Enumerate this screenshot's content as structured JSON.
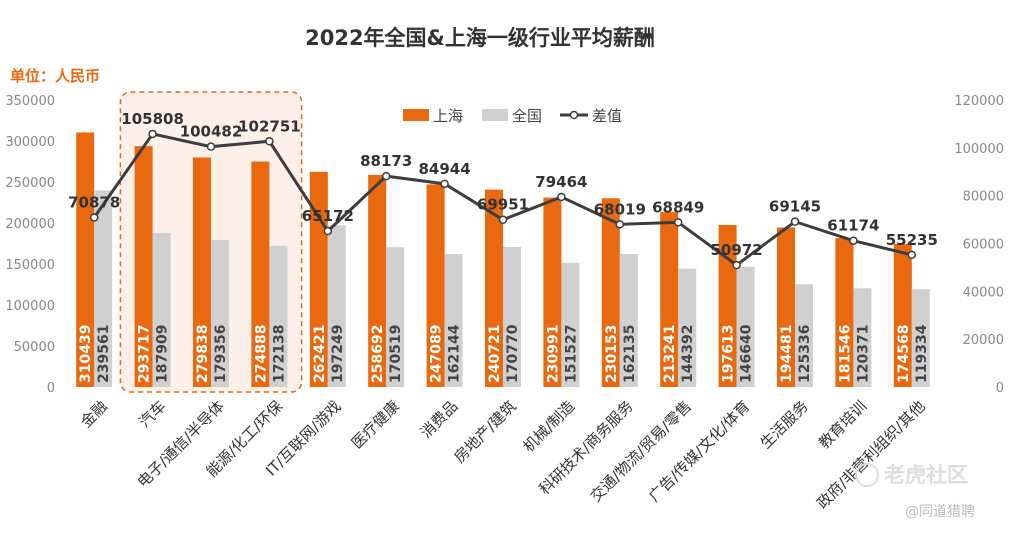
{
  "chart_data": {
    "type": "bar",
    "title": "2022年全国&上海一级行业平均薪酬",
    "unit_label": "单位：人民币",
    "legend": {
      "shanghai": "上海",
      "national": "全国",
      "diff": "差值"
    },
    "categories": [
      "金融",
      "汽车",
      "电子/通信/半导体",
      "能源/化工/环保",
      "IT/互联网/游戏",
      "医疗健康",
      "消费品",
      "房地产/建筑",
      "机械/制造",
      "科研技术/商务服务",
      "交通/物流/贸易/零售",
      "广告/传媒/文化/体育",
      "生活服务",
      "教育培训",
      "政府/非营利组织/其他"
    ],
    "series": [
      {
        "name": "上海",
        "values": [
          310439,
          293717,
          279838,
          274888,
          262421,
          258692,
          247089,
          240721,
          230991,
          230153,
          213241,
          197613,
          194481,
          181546,
          174568
        ],
        "value_labels": [
          "310439",
          "293717",
          "279838",
          "274888",
          "262421",
          "258692",
          "247089",
          "240721",
          "230991",
          "230153",
          "213241",
          "197613",
          "194481",
          "181546",
          "174568"
        ]
      },
      {
        "name": "全国",
        "values": [
          239561,
          187909,
          179356,
          172138,
          197249,
          170519,
          162144,
          170770,
          151527,
          162135,
          144392,
          146640,
          125336,
          120371,
          119334
        ],
        "value_labels": [
          "239561",
          "187909",
          "179356",
          "172138",
          "197249",
          "170519",
          "162144",
          "170770",
          "151527",
          "162135",
          "144392",
          "146640",
          "125336",
          "120371",
          "119334"
        ]
      },
      {
        "name": "差值",
        "axis": "right",
        "values": [
          70878,
          105808,
          100482,
          102751,
          65172,
          88173,
          84944,
          69951,
          79464,
          68019,
          68849,
          50972,
          69145,
          61174,
          55235
        ],
        "value_labels": [
          "70878",
          "105808",
          "100482",
          "102751",
          "65172",
          "88173",
          "84944",
          "69951",
          "79464",
          "68019",
          "68849",
          "50972",
          "69145",
          "61174",
          "55235"
        ]
      }
    ],
    "ylim_left": [
      0,
      350000
    ],
    "yticks_left": [
      "0",
      "50000",
      "100000",
      "150000",
      "200000",
      "250000",
      "300000",
      "350000"
    ],
    "ylim_right": [
      0,
      120000
    ],
    "yticks_right": [
      "0",
      "20000",
      "40000",
      "60000",
      "80000",
      "100000",
      "120000"
    ],
    "highlight_categories": [
      "汽车",
      "电子/通信/半导体",
      "能源/化工/环保"
    ],
    "colors": {
      "shanghai": "#e8690f",
      "national": "#d0d0d0",
      "diff": "#3d3d3d",
      "highlight_border": "#e8690f",
      "highlight_fill": "#fdf0e8",
      "unit": "#e8690f",
      "title": "#333333",
      "axis_text": "#888888"
    }
  },
  "watermarks": {
    "hupu": "老虎社区",
    "handle": "@同道猎聘"
  }
}
